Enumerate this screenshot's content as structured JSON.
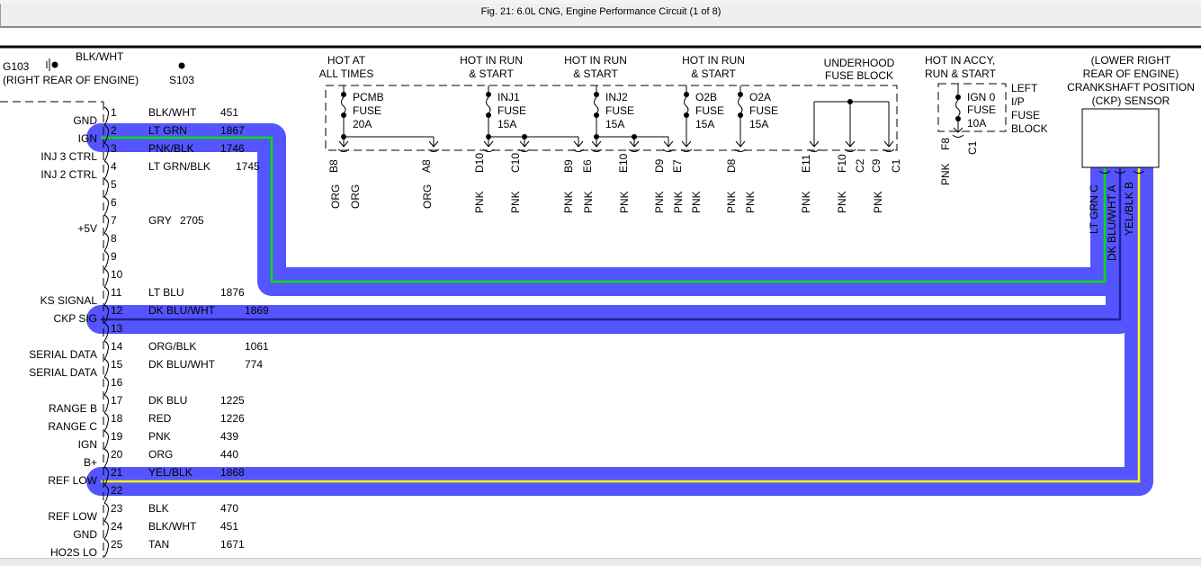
{
  "window": {
    "title": "Fig. 21: 6.0L CNG, Engine Performance Circuit (1 of 8)"
  },
  "ground": {
    "id": "G103",
    "location": "(RIGHT REAR OF ENGINE)",
    "wire": "BLK/WHT"
  },
  "splice": {
    "id": "S103"
  },
  "pcm_pins": [
    {
      "pin": "1",
      "label": "GND",
      "color": "BLK/WHT",
      "circuit": "451"
    },
    {
      "pin": "2",
      "label": "IGN",
      "color": "LT GRN",
      "circuit": "1867"
    },
    {
      "pin": "3",
      "label": "INJ 3 CTRL",
      "color": "PNK/BLK",
      "circuit": "1746"
    },
    {
      "pin": "4",
      "label": "INJ 2 CTRL",
      "color": "LT GRN/BLK",
      "circuit": "1745"
    },
    {
      "pin": "5"
    },
    {
      "pin": "6"
    },
    {
      "pin": "7",
      "label": "+5V",
      "color": "GRY",
      "circuit": "2705"
    },
    {
      "pin": "8"
    },
    {
      "pin": "9"
    },
    {
      "pin": "10"
    },
    {
      "pin": "11",
      "label": "KS SIGNAL",
      "color": "LT BLU",
      "circuit": "1876"
    },
    {
      "pin": "12",
      "label": "CKP SIG",
      "color": "DK BLU/WHT",
      "circuit": "1869"
    },
    {
      "pin": "13"
    },
    {
      "pin": "14",
      "label": "SERIAL DATA",
      "color": "ORG/BLK",
      "circuit": "1061"
    },
    {
      "pin": "15",
      "label": "SERIAL DATA",
      "color": "DK BLU/WHT",
      "circuit": "774"
    },
    {
      "pin": "16"
    },
    {
      "pin": "17",
      "label": "RANGE B",
      "color": "DK BLU",
      "circuit": "1225"
    },
    {
      "pin": "18",
      "label": "RANGE C",
      "color": "RED",
      "circuit": "1226"
    },
    {
      "pin": "19",
      "label": "IGN",
      "color": "PNK",
      "circuit": "439"
    },
    {
      "pin": "20",
      "label": "B+",
      "color": "ORG",
      "circuit": "440"
    },
    {
      "pin": "21",
      "label": "REF LOW",
      "color": "YEL/BLK",
      "circuit": "1868"
    },
    {
      "pin": "22"
    },
    {
      "pin": "23",
      "label": "REF LOW",
      "color": "BLK",
      "circuit": "470"
    },
    {
      "pin": "24",
      "label": "GND",
      "color": "BLK/WHT",
      "circuit": "451"
    },
    {
      "pin": "25",
      "label": "HO2S LO",
      "color": "TAN",
      "circuit": "1671"
    }
  ],
  "underhood_fuse_block": {
    "title": [
      "UNDERHOOD",
      "FUSE BLOCK"
    ],
    "fuses": [
      {
        "header": [
          "HOT AT",
          "ALL TIMES"
        ],
        "name": "PCMB",
        "type": "FUSE",
        "rating": "20A"
      },
      {
        "header": [
          "HOT IN RUN",
          "& START"
        ],
        "name": "INJ1",
        "type": "FUSE",
        "rating": "15A"
      },
      {
        "header": [
          "HOT IN RUN",
          "& START"
        ],
        "name": "INJ2",
        "type": "FUSE",
        "rating": "15A"
      },
      {
        "header": [
          "HOT IN RUN",
          "& START"
        ],
        "name": "O2B",
        "type": "FUSE",
        "rating": "15A"
      },
      {
        "name": "O2A",
        "type": "FUSE",
        "rating": "15A"
      }
    ],
    "terminals": [
      "B8",
      "A8",
      "D10",
      "C10",
      "B9",
      "E6",
      "E10",
      "D9",
      "E7",
      "D8",
      "E11",
      "F10",
      "C2",
      "C9",
      "C1"
    ],
    "wire_colors": [
      "ORG",
      "ORG",
      "ORG",
      "PNK",
      "PNK",
      "PNK",
      "PNK",
      "PNK",
      "PNK",
      "PNK",
      "PNK",
      "PNK",
      "PNK",
      "PNK",
      "PNK",
      "PNK"
    ]
  },
  "ip_fuse_block": {
    "header": [
      "HOT IN ACCY,",
      "RUN & START"
    ],
    "title": [
      "LEFT",
      "I/P",
      "FUSE",
      "BLOCK"
    ],
    "fuse": {
      "name": "IGN 0",
      "type": "FUSE",
      "rating": "10A"
    },
    "terminals": [
      "F8",
      "C1"
    ],
    "wire_color": "PNK"
  },
  "ckp_sensor": {
    "title": [
      "(LOWER RIGHT",
      "REAR OF ENGINE)",
      "CRANKSHAFT POSITION",
      "(CKP) SENSOR"
    ],
    "wires": [
      {
        "color": "LT GRN",
        "pin": "C"
      },
      {
        "color": "DK BLU/WHT",
        "pin": "A"
      },
      {
        "color": "YEL/BLK",
        "pin": "B"
      }
    ]
  },
  "highlight_colors": {
    "band": "#5555ff",
    "lt_grn": "#00e000",
    "dk_blu": "#2020a0",
    "yel": "#ffff00"
  }
}
